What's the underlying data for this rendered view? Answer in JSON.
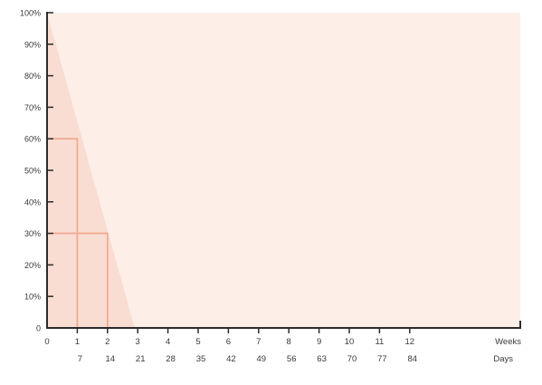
{
  "chart_data": {
    "type": "area",
    "x_unit": "weeks",
    "xlim": [
      0,
      15.4
    ],
    "ylim": [
      0,
      100
    ],
    "y_ticks": [
      "0",
      "10%",
      "20%",
      "30%",
      "40%",
      "50%",
      "60%",
      "70%",
      "80%",
      "90%",
      "100%"
    ],
    "weeks_ticks": [
      "0",
      "1",
      "2",
      "3",
      "4",
      "5",
      "6",
      "7",
      "8",
      "9",
      "10",
      "11",
      "12"
    ],
    "days_ticks": [
      "7",
      "14",
      "21",
      "28",
      "35",
      "42",
      "49",
      "56",
      "63",
      "70",
      "77",
      "84"
    ],
    "weeks_label": "Weeks",
    "days_label": "Days",
    "grid": false,
    "decay_area": {
      "x": [
        0,
        2.9
      ],
      "y": [
        100,
        0
      ]
    },
    "markers": [
      {
        "week": 1,
        "value": 60
      },
      {
        "week": 2,
        "value": 30
      }
    ],
    "colors": {
      "background": "#fdeee8",
      "decay_fill": "#f9ddd3",
      "markers": "#f2a58c",
      "axis": "#2e2a29",
      "text": "#3a3a3a"
    }
  }
}
